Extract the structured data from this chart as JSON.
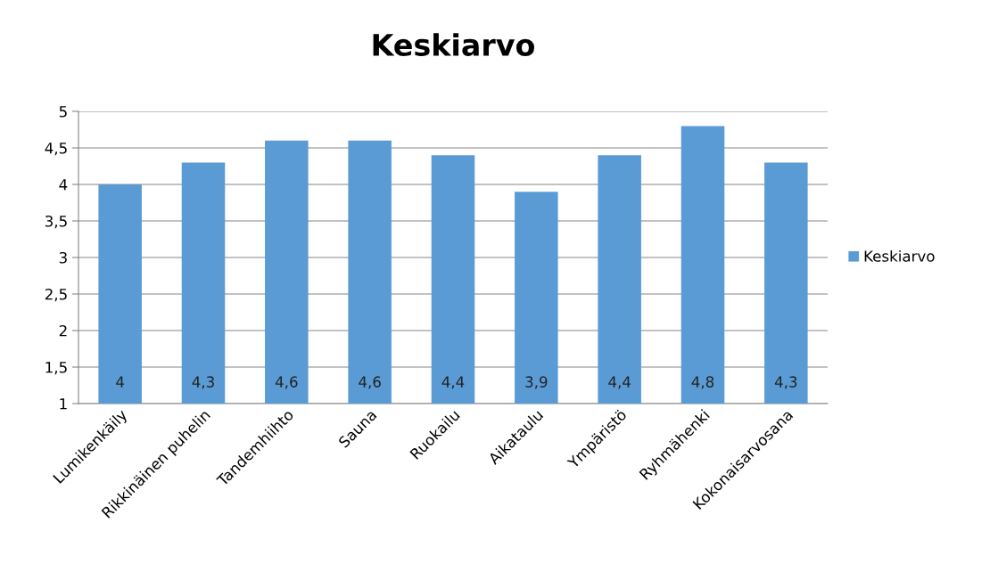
{
  "chart_data": {
    "type": "bar",
    "title": "Keskiarvo",
    "categories": [
      "Lumikenkäily",
      "Rikkinäinen puhelin",
      "Tandemhiihto",
      "Sauna",
      "Ruokailu",
      "Aikataulu",
      "Ympäristö",
      "Ryhmähenki",
      "Kokonaisarvosana"
    ],
    "series": [
      {
        "name": "Keskiarvo",
        "color": "#5b9bd5",
        "values": [
          4,
          4.3,
          4.6,
          4.6,
          4.4,
          3.9,
          4.4,
          4.8,
          4.3
        ],
        "value_labels": [
          "4",
          "4,3",
          "4,6",
          "4,6",
          "4,4",
          "3,9",
          "4,4",
          "4,8",
          "4,3"
        ]
      }
    ],
    "ylim": [
      1,
      5
    ],
    "yticks": [
      1,
      {
        "value": 1.5,
        "label": "1,5"
      },
      2,
      {
        "value": 2.5,
        "label": "2,5"
      },
      3,
      {
        "value": 3.5,
        "label": "3,5"
      },
      4,
      {
        "value": 4.5,
        "label": "4,5"
      },
      5
    ],
    "grid": "y",
    "legend": "right"
  }
}
